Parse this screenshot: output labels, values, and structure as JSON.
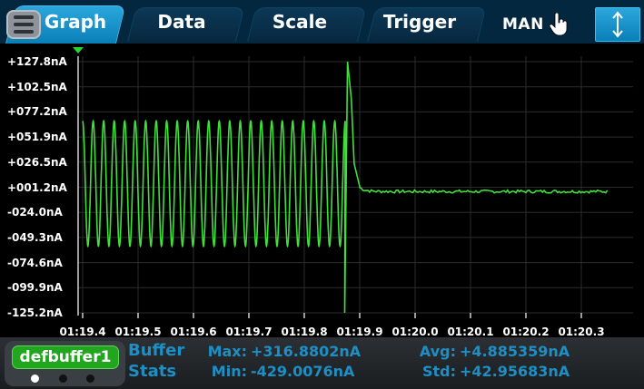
{
  "tabs": [
    {
      "label": "Graph",
      "active": true
    },
    {
      "label": "Data",
      "active": false
    },
    {
      "label": "Scale",
      "active": false
    },
    {
      "label": "Trigger",
      "active": false
    }
  ],
  "status": {
    "mode_label": "MAN"
  },
  "icons": {
    "menu": "menu-icon",
    "hand": "hand-pointer-icon",
    "updown": "up-down-arrow-icon"
  },
  "colors": {
    "trace": "#3fe03a",
    "tab_active": "#1a95cf",
    "buffer_green": "#22a51f",
    "stat_blue": "#1d8fc4"
  },
  "chart_data": {
    "type": "line",
    "title": "",
    "xlabel": "",
    "ylabel": "",
    "y_ticks": [
      "+127.8nA",
      "+102.5nA",
      "+077.2nA",
      "+051.9nA",
      "+026.5nA",
      "+001.2nA",
      "-024.0nA",
      "-049.3nA",
      "-074.6nA",
      "-099.9nA",
      "-125.2nA"
    ],
    "x_ticks": [
      "01:19.4",
      "01:19.5",
      "01:19.6",
      "01:19.7",
      "01:19.8",
      "01:19.9",
      "01:20.0",
      "01:20.1",
      "01:20.2",
      "01:20.3"
    ],
    "ylim": [
      -125.2,
      127.8
    ],
    "xlim_seconds": [
      79.4,
      80.41
    ],
    "grid": true,
    "series": [
      {
        "segments": [
          {
            "t_start": 79.4,
            "t_end": 79.874,
            "kind": "sine",
            "amplitude_nA": 63,
            "offset_nA": 5,
            "cycles": 25
          },
          {
            "t": 79.873,
            "value_nA": -125.2
          },
          {
            "t": 79.878,
            "value_nA": 127.8
          },
          {
            "t": 79.885,
            "value_nA": 90
          },
          {
            "t": 79.89,
            "value_nA": 25
          },
          {
            "t": 79.9,
            "value_nA": 2
          },
          {
            "t_start": 79.9,
            "t_end": 80.35,
            "kind": "flat",
            "value_nA": -3
          }
        ]
      }
    ]
  },
  "bottom": {
    "buffer_name": "defbuffer1",
    "stats_title_1": "Buffer",
    "stats_title_2": "Stats",
    "max_label": "Max:",
    "max_value": "+316.8802nA",
    "min_label": "Min:",
    "min_value": "-429.0076nA",
    "avg_label": "Avg:",
    "avg_value": "+4.885359nA",
    "std_label": "Std:",
    "std_value": "+42.95683nA",
    "page_indicator": {
      "pages": 3,
      "current": 1
    }
  }
}
